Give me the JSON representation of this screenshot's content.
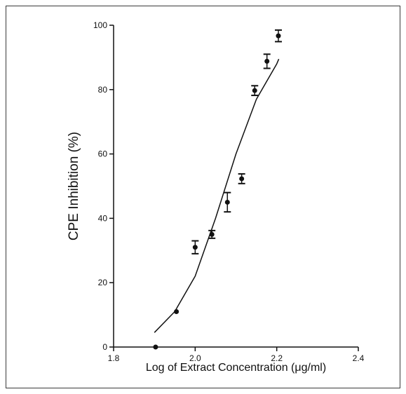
{
  "chart_data": {
    "type": "scatter",
    "xlabel": "Log of Extract Concentration (μg/ml)",
    "ylabel": "CPE Inhibition (%)",
    "xlim": [
      1.8,
      2.4
    ],
    "ylim": [
      0,
      100
    ],
    "x_ticks": [
      "1.8",
      "2.0",
      "2.2",
      "2.4"
    ],
    "y_ticks": [
      "0",
      "20",
      "40",
      "60",
      "80",
      "100"
    ],
    "grid": false,
    "legend": "none",
    "points": [
      {
        "x": 1.903,
        "y": 0.0,
        "err": 0.0
      },
      {
        "x": 1.954,
        "y": 11.0,
        "err": 0.0
      },
      {
        "x": 2.0,
        "y": 31.0,
        "err": 2.0
      },
      {
        "x": 2.041,
        "y": 35.0,
        "err": 1.2
      },
      {
        "x": 2.079,
        "y": 45.0,
        "err": 3.0
      },
      {
        "x": 2.114,
        "y": 52.3,
        "err": 1.5
      },
      {
        "x": 2.146,
        "y": 79.7,
        "err": 1.5
      },
      {
        "x": 2.176,
        "y": 88.8,
        "err": 2.2
      },
      {
        "x": 2.204,
        "y": 96.7,
        "err": 1.8
      }
    ],
    "fit_curve": {
      "x": [
        1.9,
        1.95,
        2.0,
        2.05,
        2.1,
        2.15,
        2.2,
        2.205
      ],
      "y": [
        4.5,
        11.0,
        22.0,
        40.0,
        60.0,
        77.0,
        88.0,
        89.5
      ]
    },
    "colors": {
      "marker": "#111111",
      "line": "#111111",
      "axis": "#111111"
    }
  }
}
